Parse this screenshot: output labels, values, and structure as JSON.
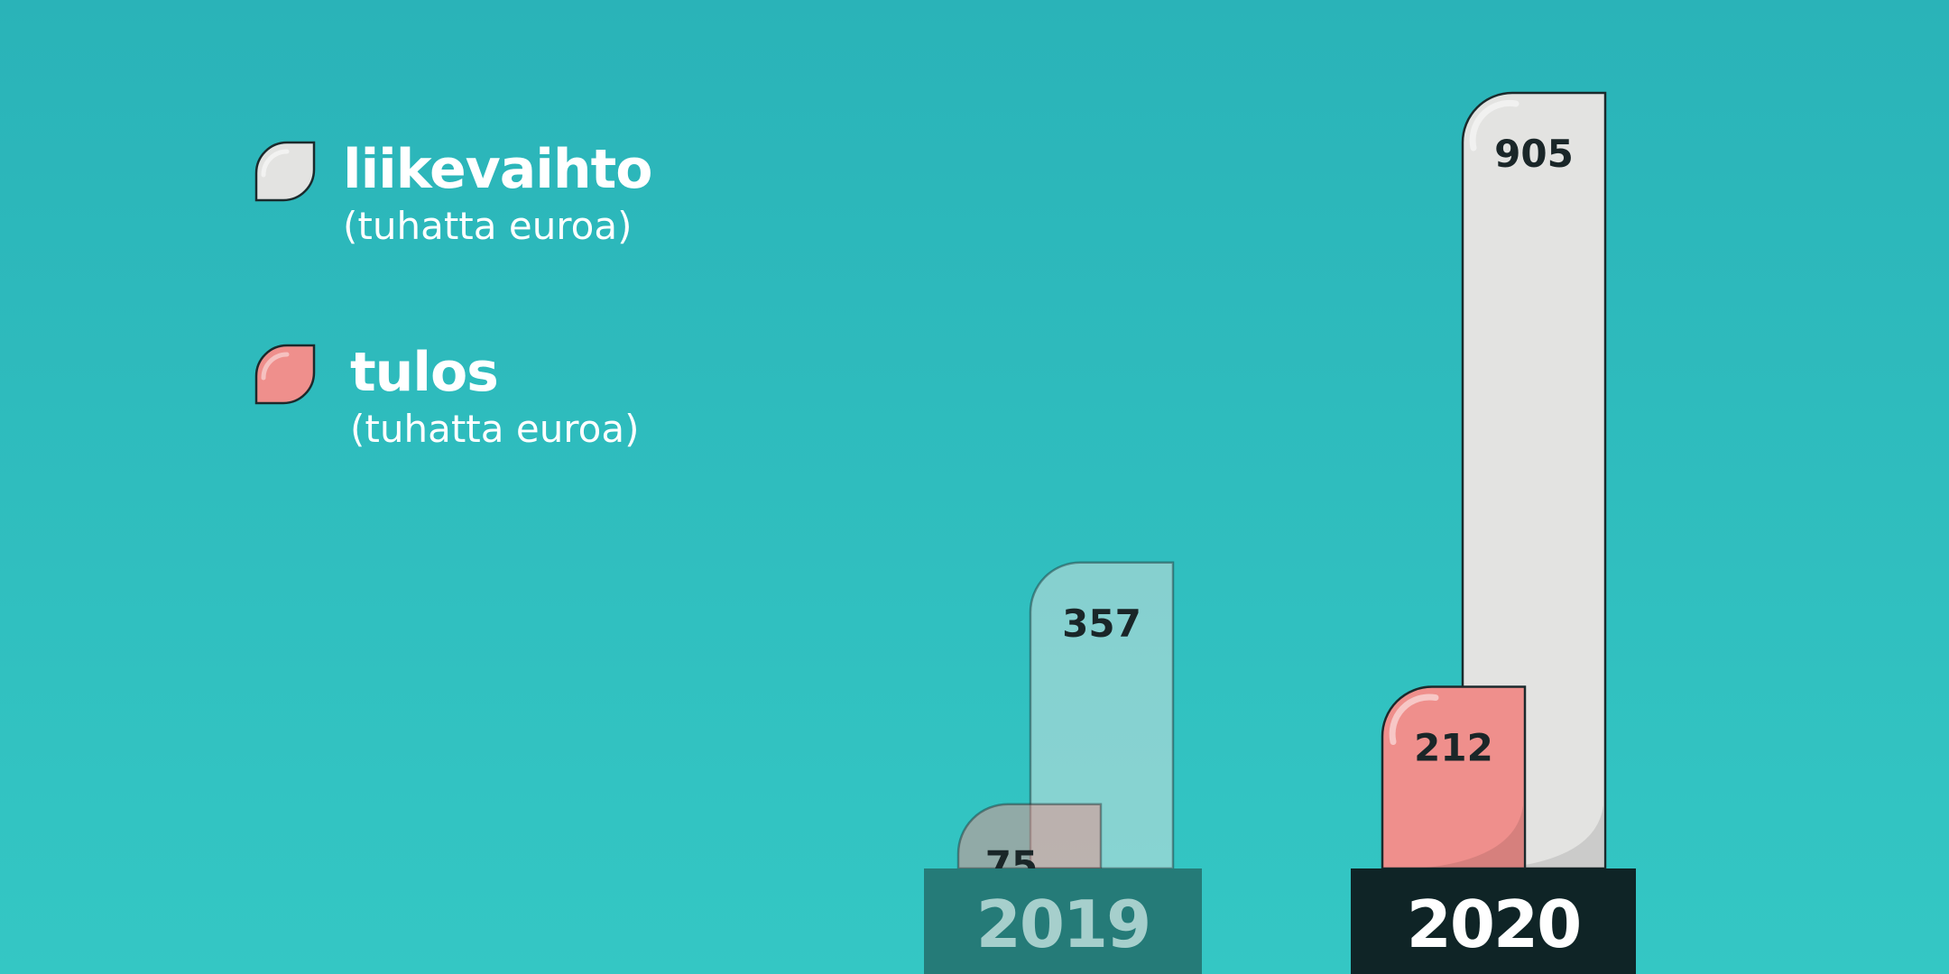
{
  "colors": {
    "background_top": "#2ab3b8",
    "background_bottom": "#34c7c4",
    "liikevaihto": "#e3e3e1",
    "tulos": "#ef8f8c",
    "outline": "#1b2a2c",
    "year_2019_bg": "#257b78",
    "year_2019_text": "#a6cfcc",
    "year_2020_bg": "#0f2426",
    "year_2020_text": "#ffffff"
  },
  "legend": [
    {
      "name": "liikevaihto",
      "unit": "(tuhatta euroa)",
      "color": "#e3e3e1",
      "icon": "drop-icon"
    },
    {
      "name": "tulos",
      "unit": "(tuhatta euroa)",
      "color": "#ef8f8c",
      "icon": "drop-icon"
    }
  ],
  "chart_data": {
    "type": "bar",
    "title": "",
    "xlabel": "",
    "ylabel": "",
    "categories": [
      "2019",
      "2020"
    ],
    "series": [
      {
        "name": "liikevaihto",
        "values": [
          357,
          905
        ]
      },
      {
        "name": "tulos",
        "values": [
          75,
          212
        ]
      }
    ],
    "ylim": [
      0,
      905
    ],
    "grid": false,
    "legend_position": "top-left",
    "highlighted_category": "2020",
    "dimmed_category": "2019"
  }
}
